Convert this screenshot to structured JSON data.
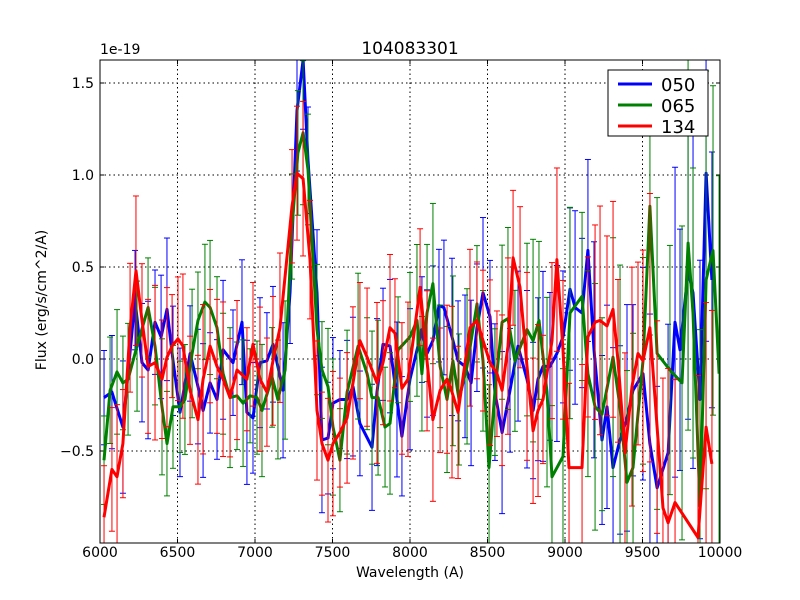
{
  "chart_data": {
    "type": "line",
    "title": "104083301",
    "xlabel": "Wavelength (A)",
    "ylabel": "Flux (erg/s/cm^2/A)",
    "y_offset_label": "1e-19",
    "xlim": [
      6000,
      10000
    ],
    "ylim": [
      -1.0,
      1.625
    ],
    "x_ticks": [
      6000,
      6500,
      7000,
      7500,
      8000,
      8500,
      9000,
      9500,
      10000
    ],
    "x_tick_labels": [
      "6000",
      "6500",
      "7000",
      "7500",
      "8000",
      "8500",
      "9000",
      "9500",
      "10000"
    ],
    "y_ticks": [
      -0.5,
      0.0,
      0.5,
      1.0,
      1.5
    ],
    "y_tick_labels": [
      "−0.5",
      "0.0",
      "0.5",
      "1.0",
      "1.5"
    ],
    "grid": true,
    "legend_position": "top-right",
    "series": [
      {
        "name": "050",
        "color": "#0000ff",
        "yerr_profile": [
          [
            6000,
            0.32
          ],
          [
            7500,
            0.33
          ],
          [
            8500,
            0.38
          ],
          [
            9000,
            0.45
          ],
          [
            9500,
            0.6
          ],
          [
            10000,
            0.9
          ]
        ],
        "points": [
          [
            6026,
            -0.21
          ],
          [
            6077,
            -0.18
          ],
          [
            6148,
            -0.37
          ],
          [
            6226,
            0.32
          ],
          [
            6271,
            -0.02
          ],
          [
            6310,
            -0.06
          ],
          [
            6355,
            0.2
          ],
          [
            6394,
            0.12
          ],
          [
            6432,
            0.27
          ],
          [
            6471,
            -0.01
          ],
          [
            6516,
            -0.29
          ],
          [
            6581,
            0.03
          ],
          [
            6632,
            -0.15
          ],
          [
            6665,
            -0.28
          ],
          [
            6710,
            -0.13
          ],
          [
            6755,
            -0.22
          ],
          [
            6794,
            0.05
          ],
          [
            6858,
            -0.02
          ],
          [
            6916,
            0.2
          ],
          [
            6948,
            -0.29
          ],
          [
            6987,
            -0.32
          ],
          [
            7032,
            -0.02
          ],
          [
            7077,
            -0.01
          ],
          [
            7116,
            0.08
          ],
          [
            7181,
            -0.17
          ],
          [
            7226,
            0.36
          ],
          [
            7271,
            1.35
          ],
          [
            7310,
            1.63
          ],
          [
            7342,
            1.08
          ],
          [
            7400,
            0.36
          ],
          [
            7432,
            -0.44
          ],
          [
            7471,
            -0.43
          ],
          [
            7503,
            -0.24
          ],
          [
            7548,
            -0.22
          ],
          [
            7594,
            -0.22
          ],
          [
            7632,
            -0.15
          ],
          [
            7677,
            -0.35
          ],
          [
            7755,
            -0.48
          ],
          [
            7787,
            -0.18
          ],
          [
            7826,
            0.08
          ],
          [
            7871,
            0.07
          ],
          [
            7916,
            -0.22
          ],
          [
            7948,
            -0.42
          ],
          [
            8000,
            -0.11
          ],
          [
            8077,
            0.16
          ],
          [
            8110,
            0.03
          ],
          [
            8148,
            0.1
          ],
          [
            8187,
            0.29
          ],
          [
            8219,
            0.28
          ],
          [
            8271,
            0.12
          ],
          [
            8310,
            -0.01
          ],
          [
            8355,
            -0.04
          ],
          [
            8394,
            -0.13
          ],
          [
            8432,
            0.17
          ],
          [
            8471,
            0.36
          ],
          [
            8516,
            0.23
          ],
          [
            8548,
            -0.18
          ],
          [
            8594,
            -0.4
          ],
          [
            8645,
            -0.17
          ],
          [
            8697,
            0.07
          ],
          [
            8755,
            -0.11
          ],
          [
            8794,
            -0.28
          ],
          [
            8826,
            -0.11
          ],
          [
            8858,
            -0.04
          ],
          [
            8903,
            -0.04
          ],
          [
            8948,
            0.03
          ],
          [
            8987,
            0.12
          ],
          [
            9032,
            0.38
          ],
          [
            9065,
            0.28
          ],
          [
            9110,
            0.25
          ],
          [
            9148,
            0.59
          ],
          [
            9187,
            0.05
          ],
          [
            9239,
            -0.44
          ],
          [
            9271,
            -0.26
          ],
          [
            9310,
            -0.59
          ],
          [
            9355,
            -0.44
          ],
          [
            9400,
            -0.32
          ],
          [
            9439,
            -0.17
          ],
          [
            9503,
            -0.08
          ],
          [
            9548,
            -0.46
          ],
          [
            9594,
            -0.7
          ],
          [
            9665,
            -0.51
          ],
          [
            9710,
            0.2
          ],
          [
            9742,
            0.05
          ],
          [
            9794,
            0.48
          ],
          [
            9826,
            0.36
          ],
          [
            9871,
            -0.22
          ],
          [
            9910,
            1.01
          ],
          [
            9948,
            0.43
          ]
        ]
      },
      {
        "name": "065",
        "color": "#008000",
        "yerr_profile": [
          [
            6000,
            0.3
          ],
          [
            7500,
            0.33
          ],
          [
            8500,
            0.4
          ],
          [
            9000,
            0.5
          ],
          [
            9500,
            0.7
          ],
          [
            10000,
            1.0
          ]
        ],
        "points": [
          [
            6026,
            -0.55
          ],
          [
            6065,
            -0.17
          ],
          [
            6110,
            -0.07
          ],
          [
            6148,
            -0.13
          ],
          [
            6181,
            -0.11
          ],
          [
            6239,
            0.07
          ],
          [
            6310,
            0.28
          ],
          [
            6355,
            0.07
          ],
          [
            6400,
            -0.26
          ],
          [
            6432,
            -0.46
          ],
          [
            6471,
            -0.26
          ],
          [
            6516,
            -0.26
          ],
          [
            6548,
            -0.22
          ],
          [
            6594,
            0.03
          ],
          [
            6632,
            0.21
          ],
          [
            6677,
            0.31
          ],
          [
            6710,
            0.28
          ],
          [
            6755,
            0.17
          ],
          [
            6794,
            -0.08
          ],
          [
            6839,
            -0.21
          ],
          [
            6884,
            -0.2
          ],
          [
            6923,
            -0.24
          ],
          [
            6968,
            -0.2
          ],
          [
            7013,
            -0.21
          ],
          [
            7045,
            -0.28
          ],
          [
            7110,
            -0.1
          ],
          [
            7148,
            -0.22
          ],
          [
            7194,
            -0.06
          ],
          [
            7239,
            0.72
          ],
          [
            7277,
            1.12
          ],
          [
            7310,
            1.23
          ],
          [
            7342,
            1.03
          ],
          [
            7400,
            0.16
          ],
          [
            7432,
            -0.06
          ],
          [
            7471,
            -0.15
          ],
          [
            7503,
            -0.37
          ],
          [
            7548,
            -0.55
          ],
          [
            7594,
            -0.18
          ],
          [
            7665,
            0.07
          ],
          [
            7723,
            -0.08
          ],
          [
            7755,
            -0.21
          ],
          [
            7794,
            -0.21
          ],
          [
            7839,
            -0.37
          ],
          [
            7871,
            -0.35
          ],
          [
            7923,
            0.05
          ],
          [
            8000,
            0.12
          ],
          [
            8045,
            0.21
          ],
          [
            8077,
            -0.08
          ],
          [
            8110,
            0.25
          ],
          [
            8148,
            0.41
          ],
          [
            8194,
            -0.04
          ],
          [
            8239,
            -0.22
          ],
          [
            8277,
            -0.01
          ],
          [
            8316,
            -0.22
          ],
          [
            8368,
            -0.04
          ],
          [
            8432,
            0.3
          ],
          [
            8471,
            -0.01
          ],
          [
            8510,
            -0.59
          ],
          [
            8548,
            -0.18
          ],
          [
            8594,
            0.2
          ],
          [
            8632,
            0.22
          ],
          [
            8677,
            -0.01
          ],
          [
            8755,
            0.16
          ],
          [
            8794,
            0.1
          ],
          [
            8832,
            0.21
          ],
          [
            8884,
            -0.18
          ],
          [
            8916,
            -0.64
          ],
          [
            8987,
            -0.53
          ],
          [
            9032,
            0.25
          ],
          [
            9110,
            0.34
          ],
          [
            9148,
            -0.08
          ],
          [
            9194,
            -0.26
          ],
          [
            9239,
            -0.3
          ],
          [
            9310,
            0.01
          ],
          [
            9355,
            -0.26
          ],
          [
            9400,
            -0.67
          ],
          [
            9439,
            -0.59
          ],
          [
            9503,
            -0.01
          ],
          [
            9548,
            0.83
          ],
          [
            9594,
            0.03
          ],
          [
            9677,
            -0.06
          ],
          [
            9755,
            -0.13
          ],
          [
            9794,
            0.63
          ],
          [
            9826,
            0.25
          ],
          [
            9871,
            -0.8
          ],
          [
            9910,
            0.43
          ],
          [
            9955,
            0.59
          ],
          [
            9994,
            -0.08
          ]
        ]
      },
      {
        "name": "134",
        "color": "#ff0000",
        "yerr_profile": [
          [
            6000,
            0.35
          ],
          [
            7500,
            0.35
          ],
          [
            8500,
            0.4
          ],
          [
            9000,
            0.45
          ],
          [
            9500,
            0.6
          ],
          [
            10000,
            0.9
          ]
        ],
        "points": [
          [
            6026,
            -0.86
          ],
          [
            6077,
            -0.6
          ],
          [
            6110,
            -0.64
          ],
          [
            6148,
            -0.46
          ],
          [
            6194,
            0.17
          ],
          [
            6232,
            0.48
          ],
          [
            6271,
            0.21
          ],
          [
            6310,
            -0.04
          ],
          [
            6355,
            -0.02
          ],
          [
            6400,
            -0.11
          ],
          [
            6432,
            0.01
          ],
          [
            6465,
            0.07
          ],
          [
            6503,
            0.11
          ],
          [
            6535,
            0.07
          ],
          [
            6581,
            -0.17
          ],
          [
            6632,
            -0.33
          ],
          [
            6665,
            -0.11
          ],
          [
            6710,
            0.07
          ],
          [
            6755,
            -0.04
          ],
          [
            6794,
            -0.11
          ],
          [
            6839,
            -0.21
          ],
          [
            6884,
            -0.06
          ],
          [
            6948,
            -0.11
          ],
          [
            6987,
            0.08
          ],
          [
            7032,
            -0.11
          ],
          [
            7077,
            -0.18
          ],
          [
            7116,
            -0.01
          ],
          [
            7161,
            0.17
          ],
          [
            7239,
            0.83
          ],
          [
            7271,
            1.01
          ],
          [
            7310,
            0.98
          ],
          [
            7355,
            0.54
          ],
          [
            7400,
            -0.28
          ],
          [
            7432,
            -0.46
          ],
          [
            7471,
            -0.55
          ],
          [
            7503,
            -0.46
          ],
          [
            7548,
            -0.4
          ],
          [
            7594,
            -0.32
          ],
          [
            7632,
            -0.13
          ],
          [
            7677,
            0.1
          ],
          [
            7723,
            0.01
          ],
          [
            7787,
            -0.13
          ],
          [
            7826,
            -0.02
          ],
          [
            7871,
            0.17
          ],
          [
            7903,
            0.14
          ],
          [
            7948,
            -0.16
          ],
          [
            7987,
            -0.11
          ],
          [
            8065,
            0.39
          ],
          [
            8110,
            -0.01
          ],
          [
            8148,
            -0.33
          ],
          [
            8194,
            -0.17
          ],
          [
            8239,
            -0.11
          ],
          [
            8271,
            -0.18
          ],
          [
            8310,
            -0.29
          ],
          [
            8387,
            0.17
          ],
          [
            8432,
            0.21
          ],
          [
            8471,
            0.1
          ],
          [
            8516,
            -0.02
          ],
          [
            8561,
            -0.08
          ],
          [
            8594,
            -0.17
          ],
          [
            8632,
            0.07
          ],
          [
            8665,
            0.55
          ],
          [
            8710,
            0.39
          ],
          [
            8755,
            -0.04
          ],
          [
            8794,
            -0.39
          ],
          [
            8826,
            -0.28
          ],
          [
            8858,
            -0.22
          ],
          [
            8916,
            0.1
          ],
          [
            8948,
            0.54
          ],
          [
            8987,
            0.05
          ],
          [
            9026,
            -0.59
          ],
          [
            9110,
            -0.59
          ],
          [
            9148,
            0.12
          ],
          [
            9194,
            0.2
          ],
          [
            9226,
            0.21
          ],
          [
            9271,
            0.18
          ],
          [
            9310,
            0.27
          ],
          [
            9342,
            -0.01
          ],
          [
            9387,
            -0.51
          ],
          [
            9432,
            -0.15
          ],
          [
            9471,
            0.03
          ],
          [
            9503,
            -0.01
          ],
          [
            9548,
            0.17
          ],
          [
            9594,
            -0.37
          ],
          [
            9632,
            -0.81
          ],
          [
            9665,
            -0.89
          ],
          [
            9710,
            -0.78
          ],
          [
            9858,
            -0.97
          ],
          [
            9910,
            -0.37
          ],
          [
            9948,
            -0.57
          ]
        ]
      }
    ]
  }
}
